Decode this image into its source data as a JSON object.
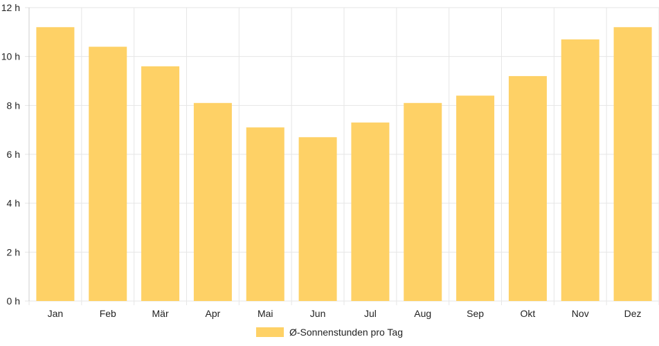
{
  "chart_data": {
    "type": "bar",
    "categories": [
      "Jan",
      "Feb",
      "Mär",
      "Apr",
      "Mai",
      "Jun",
      "Jul",
      "Aug",
      "Sep",
      "Okt",
      "Nov",
      "Dez"
    ],
    "series": [
      {
        "name": "Ø-Sonnenstunden pro Tag",
        "values": [
          11.2,
          10.4,
          9.6,
          8.1,
          7.1,
          6.7,
          7.3,
          8.1,
          8.4,
          9.2,
          10.7,
          11.2
        ]
      }
    ],
    "ylim": [
      0,
      12
    ],
    "yticks": [
      0,
      2,
      4,
      6,
      8,
      10,
      12
    ],
    "y_tick_suffix": " h",
    "grid": true,
    "legend_position": "bottom"
  },
  "colors": {
    "bar": "#fed166",
    "grid": "#e6e6e6",
    "axis": "#cccccc"
  }
}
